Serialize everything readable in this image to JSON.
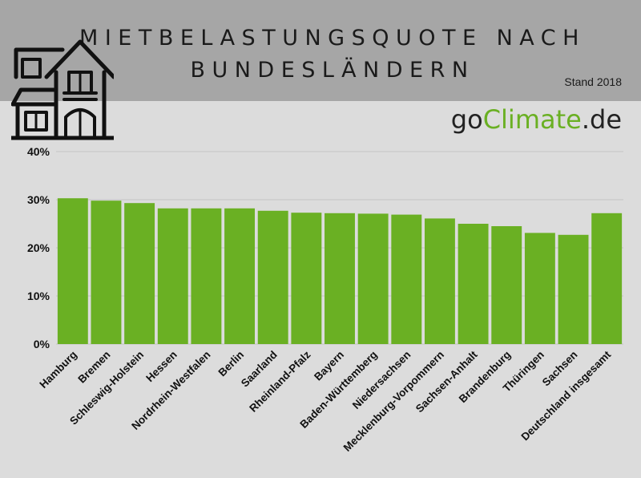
{
  "header": {
    "title_line1": "MIETBELASTUNGSQUOTE NACH",
    "title_line2": "BUNDESLÄNDERN",
    "stand": "Stand 2018",
    "logo_prefix": "go",
    "logo_accent": "Climate",
    "logo_suffix": ".de"
  },
  "colors": {
    "bar": "#6ab023",
    "header_band": "#a6a6a6",
    "background": "#dcdcdc"
  },
  "icons": {
    "header_icon": "house-icon"
  },
  "chart_data": {
    "type": "bar",
    "categories": [
      "Hamburg",
      "Bremen",
      "Schleswig-Holstein",
      "Hessen",
      "Nordrhein-Westfalen",
      "Berlin",
      "Saarland",
      "Rheinland-Pfalz",
      "Bayern",
      "Baden-Württemberg",
      "Niedersachsen",
      "Mecklenburg-Vorpommern",
      "Sachsen-Anhalt",
      "Brandenburg",
      "Thüringen",
      "Sachsen",
      "Deutschland insgesamt"
    ],
    "values": [
      30.3,
      29.8,
      29.3,
      28.2,
      28.2,
      28.2,
      27.7,
      27.3,
      27.2,
      27.1,
      26.9,
      26.1,
      25.0,
      24.5,
      23.1,
      22.7,
      27.2
    ],
    "title": "MIETBELASTUNGSQUOTE NACH BUNDESLÄNDERN",
    "xlabel": "",
    "ylabel": "",
    "ylim": [
      0,
      40
    ],
    "yticks": [
      "0%",
      "10%",
      "20%",
      "30%",
      "40%"
    ],
    "grid": true,
    "legend": "none"
  }
}
